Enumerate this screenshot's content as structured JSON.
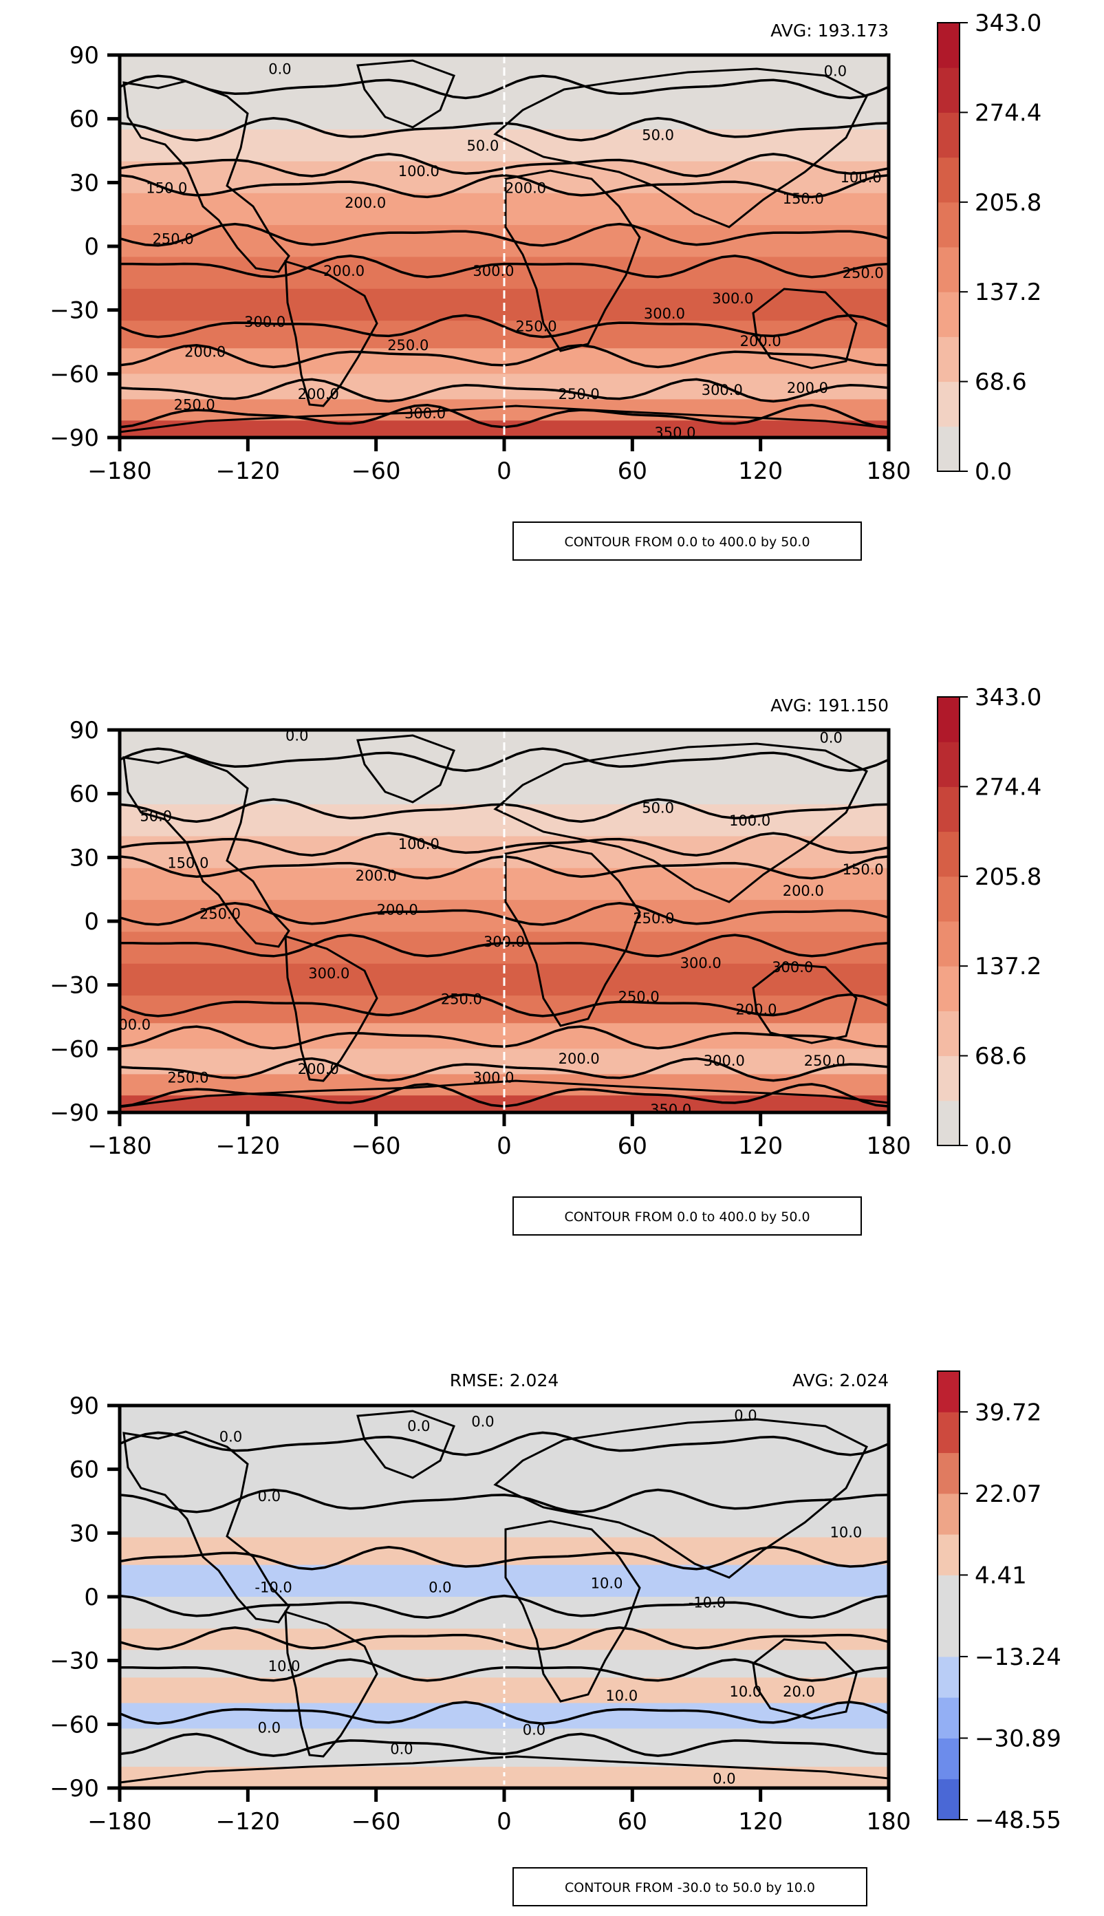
{
  "chart_data": [
    {
      "type": "heatmap",
      "subtype": "filled-contour-map",
      "id": "panel-test",
      "xlim": [
        -180,
        180
      ],
      "ylim": [
        -90,
        90
      ],
      "xticks": [
        "−180",
        "−120",
        "−60",
        "0",
        "60",
        "120",
        "180"
      ],
      "yticks": [
        "90",
        "60",
        "30",
        "0",
        "−30",
        "−60",
        "−90"
      ],
      "avg_label": "AVG: 193.173",
      "contour_note": "CONTOUR FROM 0.0 to 400.0 by 50.0",
      "colorbar": {
        "ticks": [
          "0.0",
          "68.6",
          "137.2",
          "205.8",
          "274.4",
          "343.0"
        ],
        "colors": [
          "#e0dcd8",
          "#f2d2c3",
          "#f4bba4",
          "#f3a487",
          "#ec8d6e",
          "#e27658",
          "#d65f46",
          "#c8453a",
          "#b92b30",
          "#b0192a"
        ]
      },
      "bands": [
        {
          "lat": 90,
          "level": 0
        },
        {
          "lat": 70,
          "level": 0
        },
        {
          "lat": 55,
          "level": 1
        },
        {
          "lat": 40,
          "level": 2
        },
        {
          "lat": 25,
          "level": 3
        },
        {
          "lat": 10,
          "level": 4
        },
        {
          "lat": -5,
          "level": 5
        },
        {
          "lat": -20,
          "level": 6
        },
        {
          "lat": -35,
          "level": 5
        },
        {
          "lat": -48,
          "level": 3
        },
        {
          "lat": -60,
          "level": 2
        },
        {
          "lat": -72,
          "level": 4
        },
        {
          "lat": -82,
          "level": 7
        },
        {
          "lat": -90,
          "level": 8
        }
      ],
      "contour_lines": [
        75,
        55,
        38,
        28,
        5,
        -10,
        -38,
        -52,
        -68,
        -80
      ],
      "contour_labels": [
        {
          "text": "0.0",
          "lon": -105,
          "lat": 83
        },
        {
          "text": "0.0",
          "lon": 155,
          "lat": 82
        },
        {
          "text": "50.0",
          "lon": -10,
          "lat": 47
        },
        {
          "text": "50.0",
          "lon": 72,
          "lat": 52
        },
        {
          "text": "100.0",
          "lon": -40,
          "lat": 35
        },
        {
          "text": "100.0",
          "lon": 167,
          "lat": 32
        },
        {
          "text": "150.0",
          "lon": -158,
          "lat": 27
        },
        {
          "text": "150.0",
          "lon": 140,
          "lat": 22
        },
        {
          "text": "200.0",
          "lon": -65,
          "lat": 20
        },
        {
          "text": "200.0",
          "lon": 10,
          "lat": 27
        },
        {
          "text": "250.0",
          "lon": -155,
          "lat": 3
        },
        {
          "text": "250.0",
          "lon": 168,
          "lat": -13
        },
        {
          "text": "200.0",
          "lon": -75,
          "lat": -12
        },
        {
          "text": "300.0",
          "lon": -5,
          "lat": -12
        },
        {
          "text": "300.0",
          "lon": 107,
          "lat": -25
        },
        {
          "text": "300.0",
          "lon": 75,
          "lat": -32
        },
        {
          "text": "300.0",
          "lon": -112,
          "lat": -36
        },
        {
          "text": "250.0",
          "lon": 15,
          "lat": -38
        },
        {
          "text": "250.0",
          "lon": -45,
          "lat": -47
        },
        {
          "text": "200.0",
          "lon": -140,
          "lat": -50
        },
        {
          "text": "200.0",
          "lon": 120,
          "lat": -45
        },
        {
          "text": "200.0",
          "lon": -87,
          "lat": -70
        },
        {
          "text": "250.0",
          "lon": -145,
          "lat": -75
        },
        {
          "text": "300.0",
          "lon": -37,
          "lat": -79
        },
        {
          "text": "250.0",
          "lon": 35,
          "lat": -70
        },
        {
          "text": "300.0",
          "lon": 102,
          "lat": -68
        },
        {
          "text": "200.0",
          "lon": 142,
          "lat": -67
        },
        {
          "text": "350.0",
          "lon": 80,
          "lat": -88
        }
      ]
    },
    {
      "type": "heatmap",
      "subtype": "filled-contour-map",
      "id": "panel-reference",
      "xlim": [
        -180,
        180
      ],
      "ylim": [
        -90,
        90
      ],
      "xticks": [
        "−180",
        "−120",
        "−60",
        "0",
        "60",
        "120",
        "180"
      ],
      "yticks": [
        "90",
        "60",
        "30",
        "0",
        "−30",
        "−60",
        "−90"
      ],
      "avg_label": "AVG: 191.150",
      "contour_note": "CONTOUR FROM 0.0 to 400.0 by 50.0",
      "colorbar": {
        "ticks": [
          "0.0",
          "68.6",
          "137.2",
          "205.8",
          "274.4",
          "343.0"
        ],
        "colors": [
          "#e0dcd8",
          "#f2d2c3",
          "#f4bba4",
          "#f3a487",
          "#ec8d6e",
          "#e27658",
          "#d65f46",
          "#c8453a",
          "#b92b30",
          "#b0192a"
        ]
      },
      "bands": [
        {
          "lat": 90,
          "level": 0
        },
        {
          "lat": 70,
          "level": 0
        },
        {
          "lat": 55,
          "level": 1
        },
        {
          "lat": 40,
          "level": 2
        },
        {
          "lat": 25,
          "level": 3
        },
        {
          "lat": 10,
          "level": 4
        },
        {
          "lat": -5,
          "level": 5
        },
        {
          "lat": -20,
          "level": 6
        },
        {
          "lat": -35,
          "level": 5
        },
        {
          "lat": -48,
          "level": 3
        },
        {
          "lat": -60,
          "level": 2
        },
        {
          "lat": -72,
          "level": 4
        },
        {
          "lat": -82,
          "level": 7
        },
        {
          "lat": -90,
          "level": 8
        }
      ],
      "contour_lines": [
        76,
        52,
        36,
        25,
        3,
        -12,
        -40,
        -55,
        -70,
        -82
      ],
      "contour_labels": [
        {
          "text": "0.0",
          "lon": -97,
          "lat": 87
        },
        {
          "text": "0.0",
          "lon": 153,
          "lat": 86
        },
        {
          "text": "50.0",
          "lon": -163,
          "lat": 49
        },
        {
          "text": "50.0",
          "lon": 72,
          "lat": 53
        },
        {
          "text": "100.0",
          "lon": -40,
          "lat": 36
        },
        {
          "text": "100.0",
          "lon": 115,
          "lat": 47
        },
        {
          "text": "150.0",
          "lon": -148,
          "lat": 27
        },
        {
          "text": "150.0",
          "lon": 168,
          "lat": 24
        },
        {
          "text": "200.0",
          "lon": -60,
          "lat": 21
        },
        {
          "text": "200.0",
          "lon": 140,
          "lat": 14
        },
        {
          "text": "250.0",
          "lon": -133,
          "lat": 3
        },
        {
          "text": "250.0",
          "lon": 70,
          "lat": 1
        },
        {
          "text": "200.0",
          "lon": -50,
          "lat": 5
        },
        {
          "text": "300.0",
          "lon": 0,
          "lat": -10
        },
        {
          "text": "300.0",
          "lon": 92,
          "lat": -20
        },
        {
          "text": "300.0",
          "lon": 135,
          "lat": -22
        },
        {
          "text": "300.0",
          "lon": -82,
          "lat": -25
        },
        {
          "text": "250.0",
          "lon": -20,
          "lat": -37
        },
        {
          "text": "250.0",
          "lon": 63,
          "lat": -36
        },
        {
          "text": "200.0",
          "lon": 118,
          "lat": -42
        },
        {
          "text": "00.0",
          "lon": -173,
          "lat": -49
        },
        {
          "text": "200.0",
          "lon": -87,
          "lat": -70
        },
        {
          "text": "250.0",
          "lon": -148,
          "lat": -74
        },
        {
          "text": "300.0",
          "lon": -5,
          "lat": -74
        },
        {
          "text": "200.0",
          "lon": 35,
          "lat": -65
        },
        {
          "text": "300.0",
          "lon": 103,
          "lat": -66
        },
        {
          "text": "250.0",
          "lon": 150,
          "lat": -66
        },
        {
          "text": "350.0",
          "lon": 78,
          "lat": -89
        }
      ]
    },
    {
      "type": "heatmap",
      "subtype": "filled-contour-map",
      "id": "panel-difference",
      "xlim": [
        -180,
        180
      ],
      "ylim": [
        -90,
        90
      ],
      "xticks": [
        "−180",
        "−120",
        "−60",
        "0",
        "60",
        "120",
        "180"
      ],
      "yticks": [
        "90",
        "60",
        "30",
        "0",
        "−30",
        "−60",
        "−90"
      ],
      "avg_label": "AVG: 2.024",
      "rmse_label": "RMSE: 2.024",
      "contour_note": "CONTOUR FROM -30.0 to 50.0 by 10.0",
      "colorbar": {
        "ticks": [
          "−48.55",
          "−30.89",
          "−13.24",
          "4.41",
          "22.07",
          "39.72"
        ],
        "colors": [
          "#4a68d6",
          "#6c8ceb",
          "#93aff4",
          "#b9cdf6",
          "#dcdcdc",
          "#dcdcdc",
          "#f3c9b2",
          "#eea588",
          "#e07b60",
          "#cd4a3e",
          "#bd2130"
        ]
      },
      "bands": [
        {
          "lat": 90,
          "level": 4
        },
        {
          "lat": 35,
          "level": 4
        },
        {
          "lat": 28,
          "level": 6
        },
        {
          "lat": 15,
          "level": 3
        },
        {
          "lat": 0,
          "level": 4
        },
        {
          "lat": -15,
          "level": 6
        },
        {
          "lat": -25,
          "level": 4
        },
        {
          "lat": -38,
          "level": 6
        },
        {
          "lat": -50,
          "level": 3
        },
        {
          "lat": -62,
          "level": 4
        },
        {
          "lat": -80,
          "level": 6
        },
        {
          "lat": -90,
          "level": 4
        }
      ],
      "contour_lines": [
        72,
        45,
        18,
        -5,
        -20,
        -35,
        -55,
        -70
      ],
      "contour_labels": [
        {
          "text": "0.0",
          "lon": -128,
          "lat": 75
        },
        {
          "text": "0.0",
          "lon": -40,
          "lat": 80
        },
        {
          "text": "0.0",
          "lon": -10,
          "lat": 82
        },
        {
          "text": "0.0",
          "lon": 113,
          "lat": 85
        },
        {
          "text": "0.0",
          "lon": -110,
          "lat": 47
        },
        {
          "text": "10.0",
          "lon": 160,
          "lat": 30
        },
        {
          "text": "-10.0",
          "lon": -108,
          "lat": 4
        },
        {
          "text": "0.0",
          "lon": -30,
          "lat": 4
        },
        {
          "text": "-10.0",
          "lon": 95,
          "lat": -3
        },
        {
          "text": "10.0",
          "lon": 48,
          "lat": 6
        },
        {
          "text": "10.0",
          "lon": -103,
          "lat": -33
        },
        {
          "text": "10.0",
          "lon": 55,
          "lat": -47
        },
        {
          "text": "20.0",
          "lon": 138,
          "lat": -45
        },
        {
          "text": "10.0",
          "lon": 113,
          "lat": -45
        },
        {
          "text": "0.0",
          "lon": -110,
          "lat": -62
        },
        {
          "text": "0.0",
          "lon": -48,
          "lat": -72
        },
        {
          "text": "0.0",
          "lon": 14,
          "lat": -63
        },
        {
          "text": "0.0",
          "lon": 103,
          "lat": -86
        }
      ]
    }
  ]
}
